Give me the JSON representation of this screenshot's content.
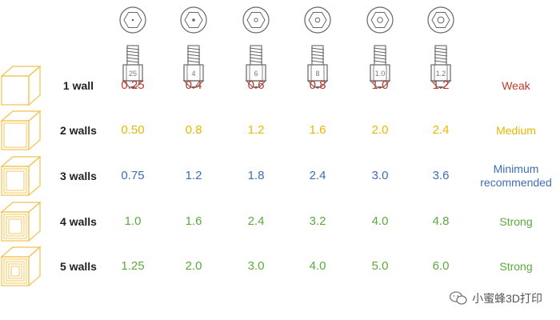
{
  "nozzles": [
    "25",
    "4",
    "6",
    "8",
    "1.0",
    "1.2"
  ],
  "rows": [
    {
      "walls": "1 wall",
      "color": "#c0392b",
      "values": [
        "0.25",
        "0.4",
        "0.6",
        "0.8",
        "1.0",
        "1.2"
      ],
      "rating": "Weak"
    },
    {
      "walls": "2 walls",
      "color": "#e6b800",
      "values": [
        "0.50",
        "0.8",
        "1.2",
        "1.6",
        "2.0",
        "2.4"
      ],
      "rating": "Medium"
    },
    {
      "walls": "3 walls",
      "color": "#3e6db5",
      "values": [
        "0.75",
        "1.2",
        "1.8",
        "2.4",
        "3.0",
        "3.6"
      ],
      "rating": "Minimum recommended"
    },
    {
      "walls": "4 walls",
      "color": "#5aaa3c",
      "values": [
        "1.0",
        "1.6",
        "2.4",
        "3.2",
        "4.0",
        "4.8"
      ],
      "rating": "Strong"
    },
    {
      "walls": "5 walls",
      "color": "#5aaa3c",
      "values": [
        "1.25",
        "2.0",
        "3.0",
        "4.0",
        "5.0",
        "6.0"
      ],
      "rating": "Strong"
    }
  ],
  "colors": {
    "cube_outline": "#f2c14e",
    "nozzle_outline": "#666666"
  },
  "watermark": "小蜜蜂3D打印"
}
